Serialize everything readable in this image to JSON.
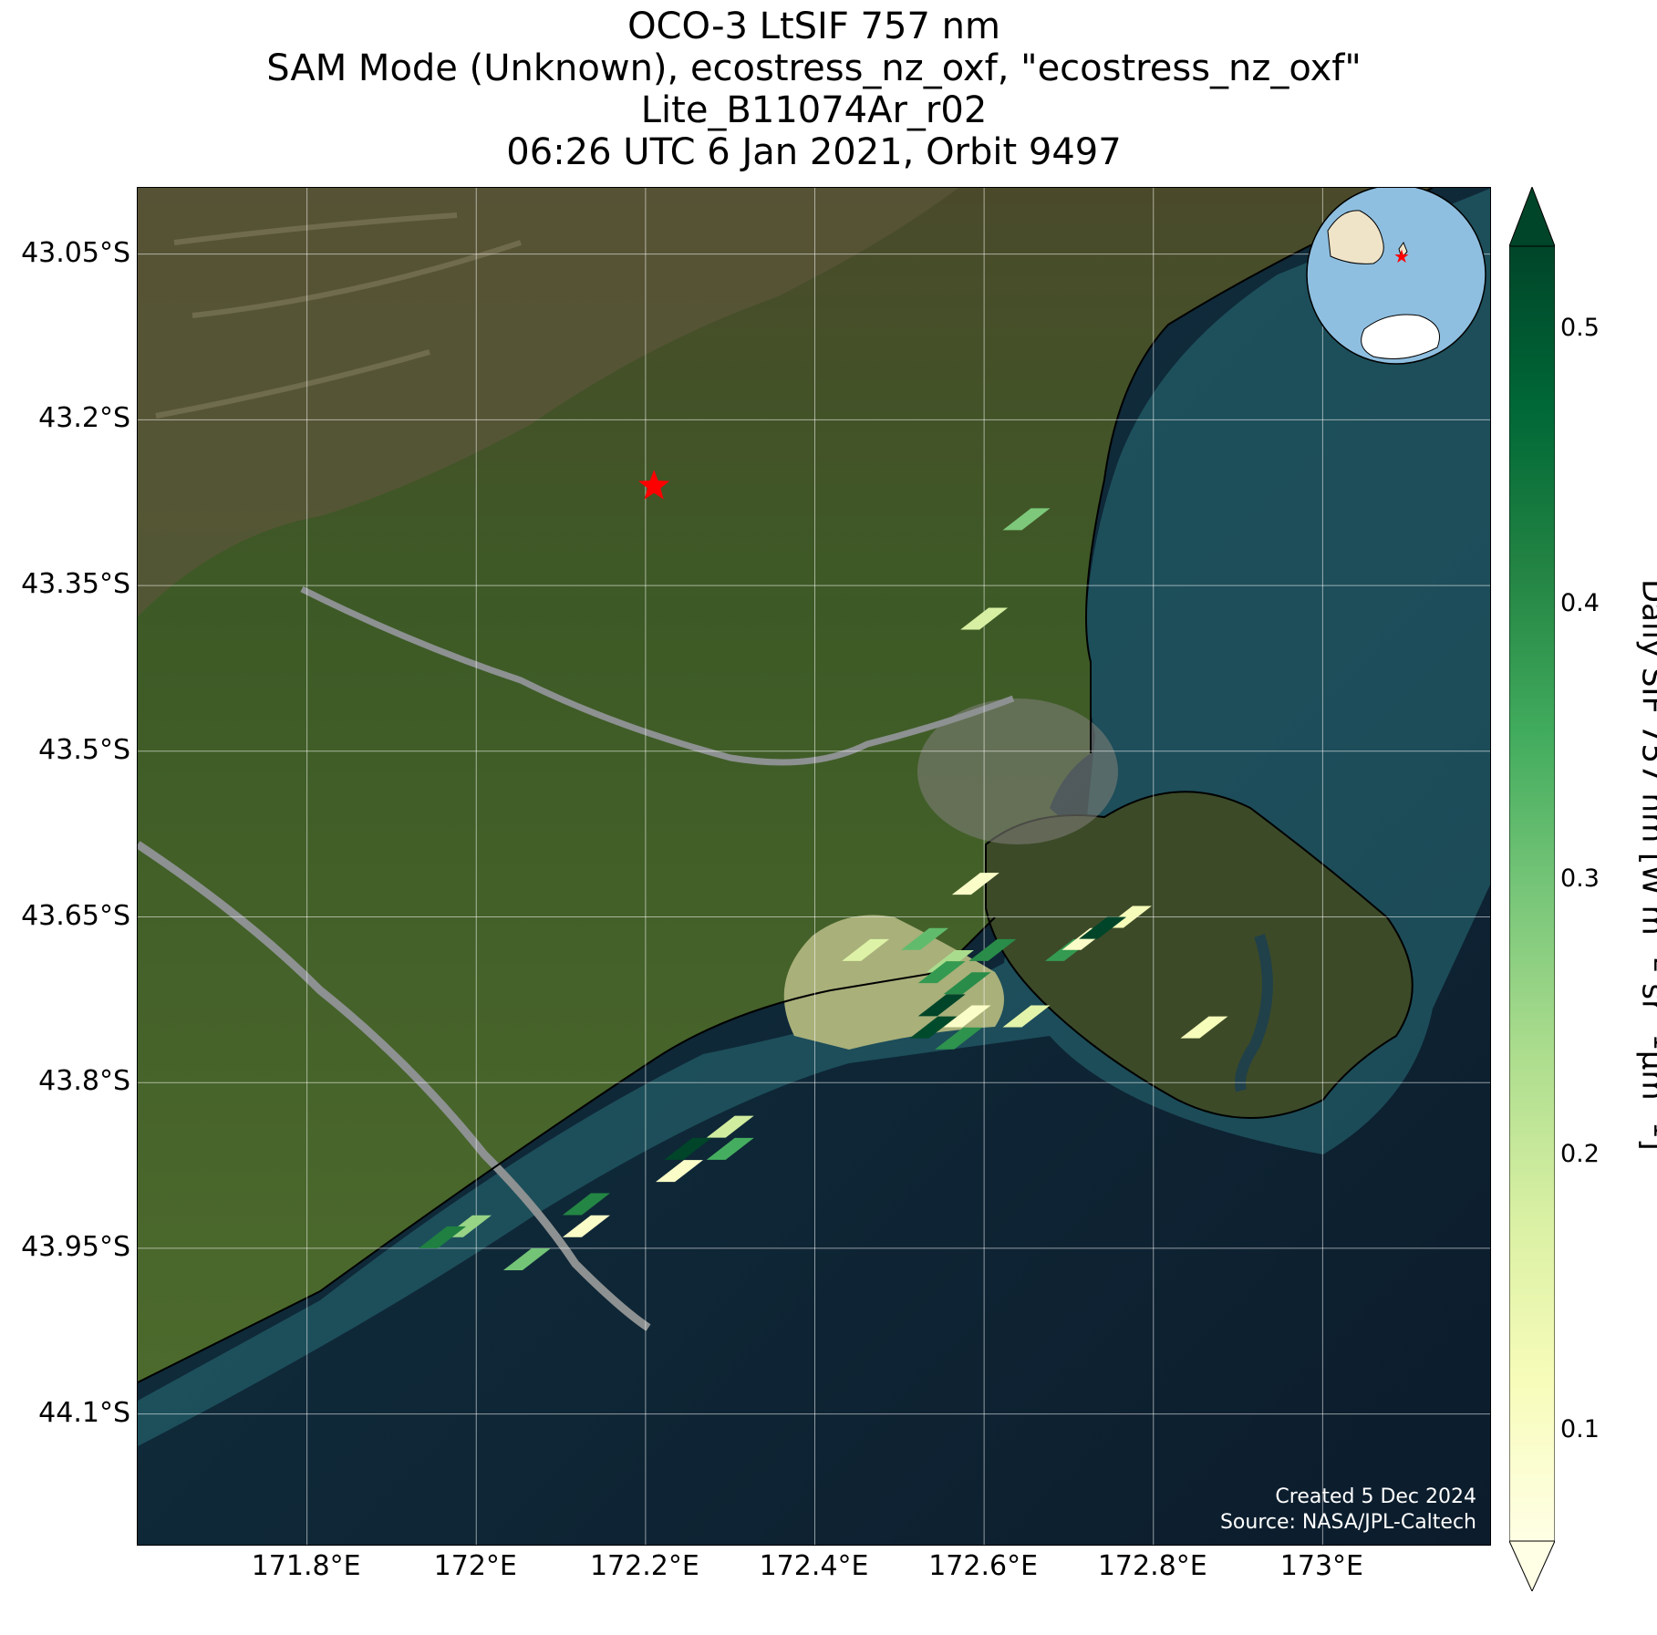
{
  "title": {
    "line1": "OCO-3 LtSIF 757 nm",
    "line2": "SAM Mode (Unknown), ecostress_nz_oxf, \"ecostress_nz_oxf\"",
    "line3": "Lite_B11074Ar_r02",
    "line4": "06:26 UTC 6 Jan 2021, Orbit 9497"
  },
  "map": {
    "lon_range": [
      171.6,
      173.2
    ],
    "lat_range": [
      -44.22,
      -42.99
    ],
    "lat_ticks": [
      "43.05°S",
      "43.2°S",
      "43.35°S",
      "43.5°S",
      "43.65°S",
      "43.8°S",
      "43.95°S",
      "44.1°S"
    ],
    "lon_ticks": [
      "171.8°E",
      "172°E",
      "172.2°E",
      "172.4°E",
      "172.6°E",
      "172.8°E",
      "173°E"
    ],
    "target": {
      "lon": 172.21,
      "lat": -43.26,
      "icon": "red-star-icon",
      "color": "#ff0000"
    },
    "inset_globe": {
      "land_color": "#efe4c8",
      "ocean_color": "#8fbfe0",
      "marker_color": "#ff0000"
    },
    "credits": {
      "line1": "Created 5 Dec 2024",
      "line2": "Source: NASA/JPL-Caltech"
    }
  },
  "colorbar": {
    "label_main": "Daily SIF 757 nm [W m",
    "label_sup1": "−2",
    "label_mid": " sr",
    "label_sup2": "−1",
    "label_tail": "μm",
    "label_sup3": "−1",
    "label_end": "]",
    "min": 0.06,
    "max": 0.53,
    "ticks": [
      {
        "value": 0.1,
        "label": "0.1"
      },
      {
        "value": 0.2,
        "label": "0.2"
      },
      {
        "value": 0.3,
        "label": "0.3"
      },
      {
        "value": 0.4,
        "label": "0.4"
      },
      {
        "value": 0.5,
        "label": "0.5"
      }
    ],
    "colormap": [
      "#ffffe5",
      "#f7fcb9",
      "#d9f0a3",
      "#addd8e",
      "#78c679",
      "#41ab5d",
      "#238443",
      "#006837",
      "#004529"
    ]
  },
  "chart_data": {
    "type": "scatter",
    "title": "OCO-3 LtSIF 757 nm",
    "xlabel": "",
    "ylabel": "",
    "points": [
      {
        "lon": 172.65,
        "lat": -43.29,
        "sif": 0.29
      },
      {
        "lon": 172.6,
        "lat": -43.38,
        "sif": 0.18
      },
      {
        "lon": 172.59,
        "lat": -43.62,
        "sif": 0.1
      },
      {
        "lon": 172.77,
        "lat": -43.65,
        "sif": 0.12
      },
      {
        "lon": 172.46,
        "lat": -43.68,
        "sif": 0.17
      },
      {
        "lon": 172.53,
        "lat": -43.67,
        "sif": 0.32
      },
      {
        "lon": 172.61,
        "lat": -43.68,
        "sif": 0.4
      },
      {
        "lon": 172.56,
        "lat": -43.69,
        "sif": 0.24
      },
      {
        "lon": 172.55,
        "lat": -43.7,
        "sif": 0.38
      },
      {
        "lon": 172.58,
        "lat": -43.71,
        "sif": 0.4
      },
      {
        "lon": 172.55,
        "lat": -43.73,
        "sif": 0.53
      },
      {
        "lon": 172.58,
        "lat": -43.74,
        "sif": 0.1
      },
      {
        "lon": 172.54,
        "lat": -43.75,
        "sif": 0.52
      },
      {
        "lon": 172.57,
        "lat": -43.76,
        "sif": 0.39
      },
      {
        "lon": 172.65,
        "lat": -43.74,
        "sif": 0.16
      },
      {
        "lon": 172.7,
        "lat": -43.68,
        "sif": 0.38
      },
      {
        "lon": 172.72,
        "lat": -43.67,
        "sif": 0.1
      },
      {
        "lon": 172.74,
        "lat": -43.66,
        "sif": 0.53
      },
      {
        "lon": 172.86,
        "lat": -43.75,
        "sif": 0.12
      },
      {
        "lon": 172.3,
        "lat": -43.84,
        "sif": 0.19
      },
      {
        "lon": 172.3,
        "lat": -43.86,
        "sif": 0.35
      },
      {
        "lon": 172.25,
        "lat": -43.86,
        "sif": 0.53
      },
      {
        "lon": 172.24,
        "lat": -43.88,
        "sif": 0.1
      },
      {
        "lon": 172.13,
        "lat": -43.91,
        "sif": 0.41
      },
      {
        "lon": 172.13,
        "lat": -43.93,
        "sif": 0.1
      },
      {
        "lon": 171.99,
        "lat": -43.93,
        "sif": 0.26
      },
      {
        "lon": 171.96,
        "lat": -43.94,
        "sif": 0.42
      },
      {
        "lon": 172.06,
        "lat": -43.96,
        "sif": 0.3
      }
    ]
  }
}
